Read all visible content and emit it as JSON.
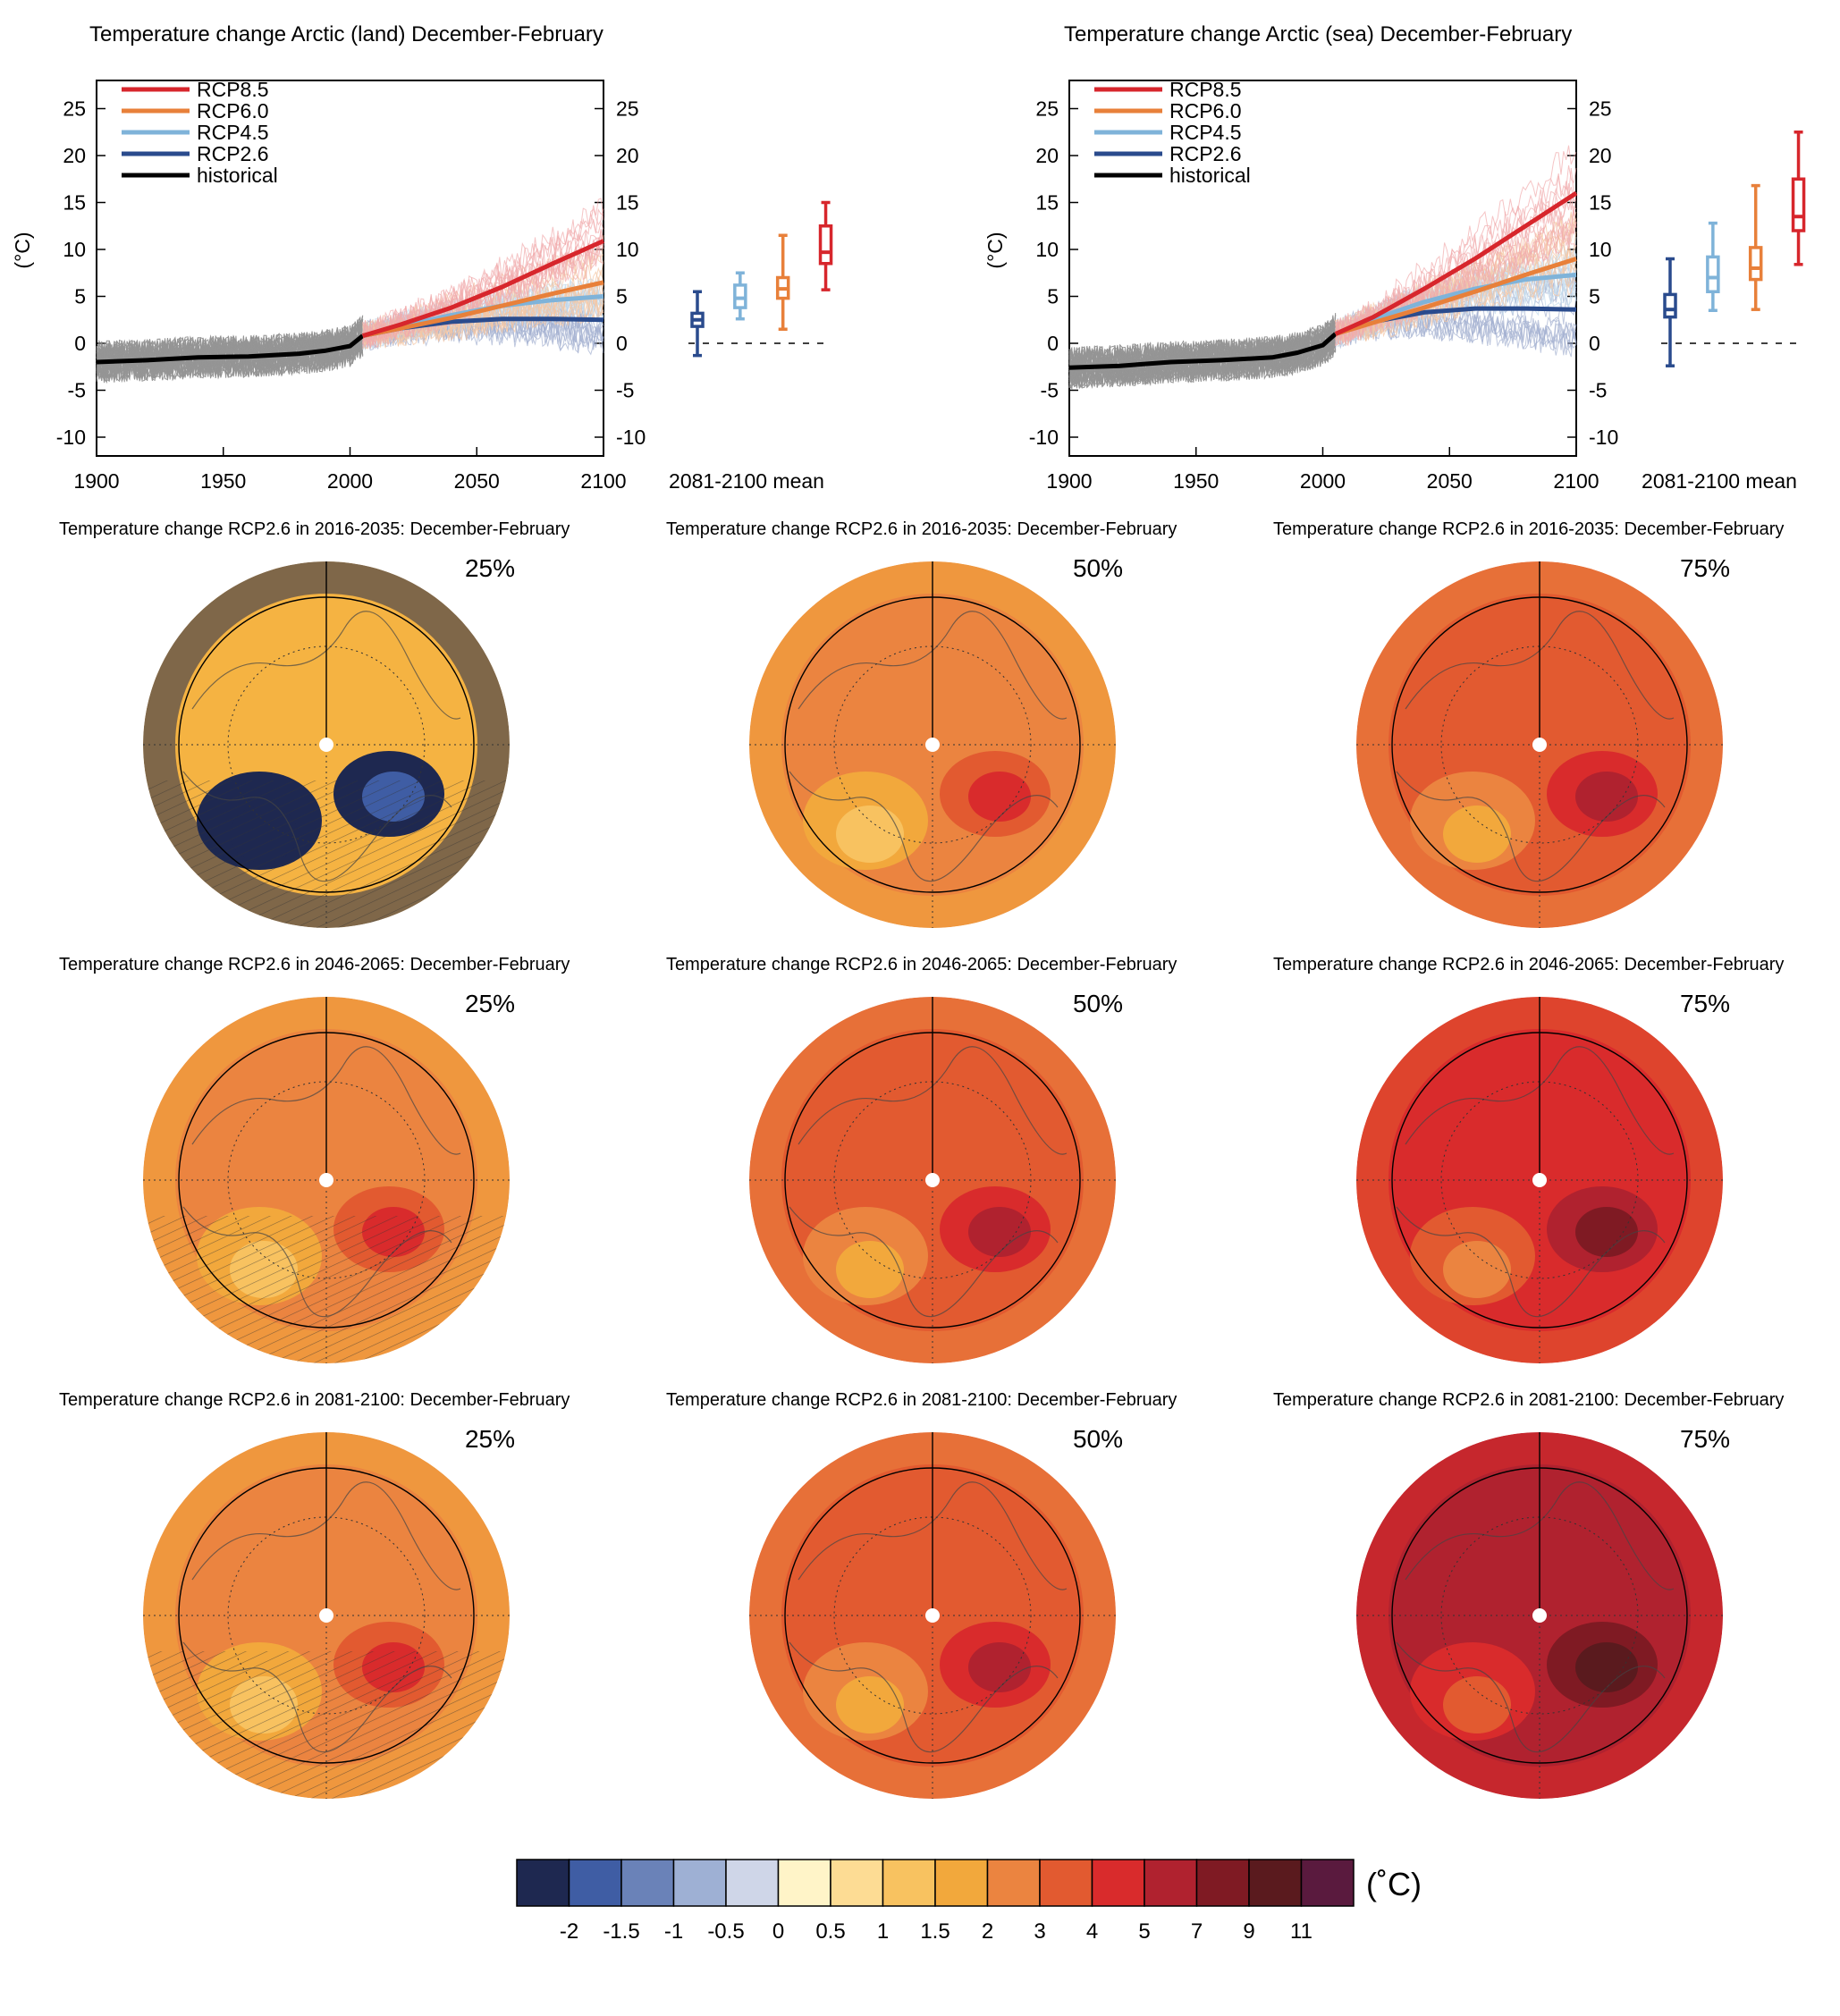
{
  "chart_data": [
    {
      "type": "line",
      "title": "Temperature change Arctic (land) December-February",
      "ylabel": "(°C)",
      "xlim": [
        1900,
        2100
      ],
      "ylim": [
        -12,
        28
      ],
      "x_ticks": [
        1900,
        1950,
        2000,
        2050,
        2100
      ],
      "y_ticks": [
        -10,
        -5,
        0,
        5,
        10,
        15,
        20,
        25
      ],
      "legend": [
        "RCP8.5",
        "RCP6.0",
        "RCP4.5",
        "RCP2.6",
        "historical"
      ],
      "legend_position": "top-left",
      "series": [
        {
          "name": "historical",
          "color": "#000000",
          "x": [
            1900,
            1920,
            1940,
            1960,
            1980,
            1990,
            2000,
            2005
          ],
          "y": [
            -2,
            -1.8,
            -1.5,
            -1.4,
            -1.1,
            -0.8,
            -0.3,
            0.8
          ]
        },
        {
          "name": "RCP2.6",
          "color": "#2a4b8d",
          "x": [
            2005,
            2020,
            2040,
            2060,
            2080,
            2100
          ],
          "y": [
            0.8,
            1.6,
            2.3,
            2.6,
            2.6,
            2.5
          ]
        },
        {
          "name": "RCP4.5",
          "color": "#7fb3d9",
          "x": [
            2005,
            2020,
            2040,
            2060,
            2080,
            2100
          ],
          "y": [
            0.8,
            1.8,
            3.0,
            4.0,
            4.6,
            5.0
          ]
        },
        {
          "name": "RCP6.0",
          "color": "#e8803a",
          "x": [
            2005,
            2020,
            2040,
            2060,
            2080,
            2100
          ],
          "y": [
            0.8,
            1.6,
            2.7,
            4.0,
            5.3,
            6.5
          ]
        },
        {
          "name": "RCP8.5",
          "color": "#d7262c",
          "x": [
            2005,
            2020,
            2040,
            2060,
            2080,
            2100
          ],
          "y": [
            0.8,
            2.0,
            3.8,
            6.0,
            8.5,
            10.9
          ]
        }
      ],
      "box_plot": {
        "label": "2081-2100 mean",
        "boxes": [
          {
            "name": "RCP2.6",
            "min": -1.3,
            "q1": 1.8,
            "median": 2.5,
            "q3": 3.2,
            "max": 5.5
          },
          {
            "name": "RCP4.5",
            "min": 2.6,
            "q1": 3.8,
            "median": 4.8,
            "q3": 6.2,
            "max": 7.5
          },
          {
            "name": "RCP6.0",
            "min": 1.5,
            "q1": 4.8,
            "median": 5.8,
            "q3": 7.0,
            "max": 11.5
          },
          {
            "name": "RCP8.5",
            "min": 5.7,
            "q1": 8.5,
            "median": 9.7,
            "q3": 12.5,
            "max": 15.0
          }
        ]
      }
    },
    {
      "type": "line",
      "title": "Temperature change Arctic (sea) December-February",
      "ylabel": "(°C)",
      "xlim": [
        1900,
        2100
      ],
      "ylim": [
        -12,
        28
      ],
      "x_ticks": [
        1900,
        1950,
        2000,
        2050,
        2100
      ],
      "y_ticks": [
        -10,
        -5,
        0,
        5,
        10,
        15,
        20,
        25
      ],
      "legend": [
        "RCP8.5",
        "RCP6.0",
        "RCP4.5",
        "RCP2.6",
        "historical"
      ],
      "legend_position": "top-left",
      "series": [
        {
          "name": "historical",
          "color": "#000000",
          "x": [
            1900,
            1920,
            1940,
            1960,
            1980,
            1990,
            2000,
            2005
          ],
          "y": [
            -2.6,
            -2.4,
            -2.0,
            -1.8,
            -1.5,
            -1.0,
            -0.2,
            1.0
          ]
        },
        {
          "name": "RCP2.6",
          "color": "#2a4b8d",
          "x": [
            2005,
            2020,
            2040,
            2060,
            2080,
            2100
          ],
          "y": [
            1.0,
            2.3,
            3.3,
            3.7,
            3.7,
            3.6
          ]
        },
        {
          "name": "RCP4.5",
          "color": "#7fb3d9",
          "x": [
            2005,
            2020,
            2040,
            2060,
            2080,
            2100
          ],
          "y": [
            1.0,
            2.6,
            4.4,
            5.8,
            6.8,
            7.3
          ]
        },
        {
          "name": "RCP6.0",
          "color": "#e8803a",
          "x": [
            2005,
            2020,
            2040,
            2060,
            2080,
            2100
          ],
          "y": [
            1.0,
            2.2,
            3.8,
            5.5,
            7.3,
            9.0
          ]
        },
        {
          "name": "RCP8.5",
          "color": "#d7262c",
          "x": [
            2005,
            2020,
            2040,
            2060,
            2080,
            2100
          ],
          "y": [
            1.0,
            2.8,
            5.8,
            9.0,
            12.5,
            16.0
          ]
        }
      ],
      "box_plot": {
        "label": "2081-2100 mean",
        "boxes": [
          {
            "name": "RCP2.6",
            "min": -2.4,
            "q1": 2.8,
            "median": 3.6,
            "q3": 5.2,
            "max": 9.0
          },
          {
            "name": "RCP4.5",
            "min": 3.5,
            "q1": 5.5,
            "median": 7.0,
            "q3": 9.2,
            "max": 12.8
          },
          {
            "name": "RCP6.0",
            "min": 3.6,
            "q1": 6.8,
            "median": 8.0,
            "q3": 10.2,
            "max": 16.8
          },
          {
            "name": "RCP8.5",
            "min": 8.4,
            "q1": 12.0,
            "median": 13.5,
            "q3": 17.5,
            "max": 22.5
          }
        ]
      }
    },
    {
      "type": "heatmap",
      "maps": [
        {
          "title": "Temperature change RCP2.6 in 2016-2035: December-February",
          "percentile": "25%",
          "base_color": "#f5b342",
          "hatched": true
        },
        {
          "title": "Temperature change RCP2.6 in 2016-2035: December-February",
          "percentile": "50%",
          "base_color": "#eb8440",
          "hatched": false
        },
        {
          "title": "Temperature change RCP2.6 in 2016-2035: December-February",
          "percentile": "75%",
          "base_color": "#e25a30",
          "hatched": false
        },
        {
          "title": "Temperature change RCP2.6 in 2046-2065: December-February",
          "percentile": "25%",
          "base_color": "#eb8440",
          "hatched": true
        },
        {
          "title": "Temperature change RCP2.6 in 2046-2065: December-February",
          "percentile": "50%",
          "base_color": "#e25a30",
          "hatched": false
        },
        {
          "title": "Temperature change RCP2.6 in 2046-2065: December-February",
          "percentile": "75%",
          "base_color": "#d92b2c",
          "hatched": false
        },
        {
          "title": "Temperature change RCP2.6 in 2081-2100: December-February",
          "percentile": "25%",
          "base_color": "#eb8440",
          "hatched": true
        },
        {
          "title": "Temperature change RCP2.6 in 2081-2100: December-February",
          "percentile": "50%",
          "base_color": "#e25a30",
          "hatched": false
        },
        {
          "title": "Temperature change RCP2.6 in 2081-2100: December-February",
          "percentile": "75%",
          "base_color": "#b0222f",
          "hatched": false
        }
      ],
      "colorbar": {
        "unit": "(˚C)",
        "labels": [
          "-2",
          "-1.5",
          "-1",
          "-0.5",
          "0",
          "0.5",
          "1",
          "1.5",
          "2",
          "3",
          "4",
          "5",
          "7",
          "9",
          "11"
        ],
        "colors": [
          "#1e2850",
          "#3f5da4",
          "#6a82b8",
          "#9eb0d4",
          "#cfd6e8",
          "#fff4c8",
          "#fddc94",
          "#f8c260",
          "#f2a83c",
          "#eb8440",
          "#e25a30",
          "#d92b2c",
          "#b0222f",
          "#7f1a23",
          "#5a1a1e",
          "#5a1a3e"
        ]
      }
    }
  ]
}
